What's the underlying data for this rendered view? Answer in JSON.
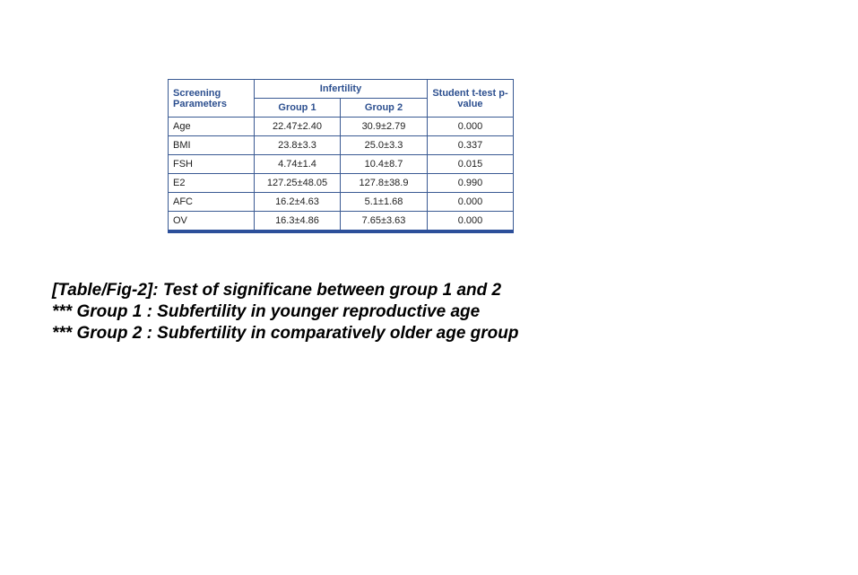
{
  "table": {
    "header": {
      "param": "Screening Parameters",
      "group_header": "Infertility",
      "group1": "Group 1",
      "group2": "Group 2",
      "pvalue": "Student t-test p-value"
    },
    "rows": [
      {
        "param": "Age",
        "g1": "22.47±2.40",
        "g2": "30.9±2.79",
        "p": "0.000"
      },
      {
        "param": "BMI",
        "g1": "23.8±3.3",
        "g2": "25.0±3.3",
        "p": "0.337"
      },
      {
        "param": "FSH",
        "g1": "4.74±1.4",
        "g2": "10.4±8.7",
        "p": "0.015"
      },
      {
        "param": "E2",
        "g1": "127.25±48.05",
        "g2": "127.8±38.9",
        "p": "0.990"
      },
      {
        "param": "AFC",
        "g1": "16.2±4.63",
        "g2": "5.1±1.68",
        "p": "0.000"
      },
      {
        "param": "OV",
        "g1": "16.3±4.86",
        "g2": "7.65±3.63",
        "p": "0.000"
      }
    ]
  },
  "caption": {
    "line1": "[Table/Fig-2]: Test of significane between group 1 and 2",
    "line2": "*** Group 1 : Subfertility in younger reproductive age",
    "line3": "*** Group 2 : Subfertility in comparatively older age group"
  }
}
